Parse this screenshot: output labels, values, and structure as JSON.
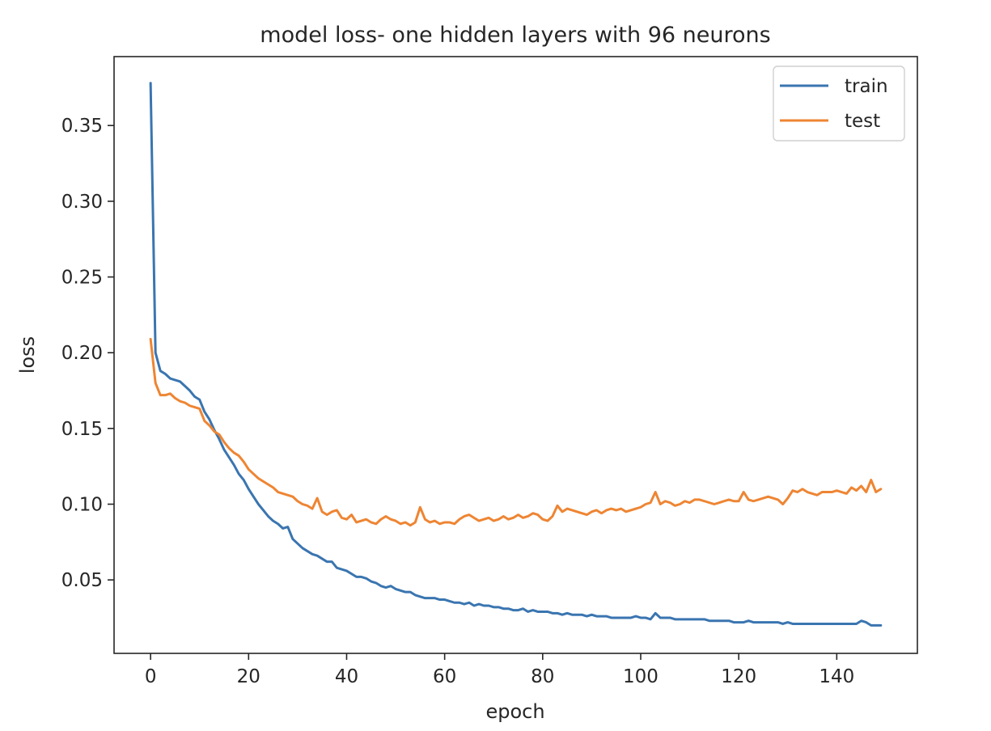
{
  "chart_data": {
    "type": "line",
    "title": "model loss- one hidden layers with 96 neurons",
    "xlabel": "epoch",
    "ylabel": "loss",
    "xlim": [
      -7.45,
      156.45
    ],
    "ylim": [
      0.0015,
      0.3955
    ],
    "x_ticks": [
      0,
      20,
      40,
      60,
      80,
      100,
      120,
      140
    ],
    "y_ticks": [
      0.05,
      0.1,
      0.15,
      0.2,
      0.25,
      0.3,
      0.35
    ],
    "y_tick_labels": [
      "0.05",
      "0.10",
      "0.15",
      "0.20",
      "0.25",
      "0.30",
      "0.35"
    ],
    "grid": false,
    "legend": {
      "position": "top-right"
    },
    "series": [
      {
        "name": "train",
        "color": "#3a75b0",
        "x_start": 0,
        "x_step": 1,
        "values": [
          0.378,
          0.2,
          0.188,
          0.186,
          0.183,
          0.182,
          0.181,
          0.178,
          0.175,
          0.171,
          0.169,
          0.161,
          0.156,
          0.149,
          0.143,
          0.136,
          0.131,
          0.126,
          0.12,
          0.116,
          0.11,
          0.105,
          0.1,
          0.096,
          0.092,
          0.089,
          0.087,
          0.084,
          0.085,
          0.077,
          0.074,
          0.071,
          0.069,
          0.067,
          0.066,
          0.064,
          0.062,
          0.062,
          0.058,
          0.057,
          0.056,
          0.054,
          0.052,
          0.052,
          0.051,
          0.049,
          0.048,
          0.046,
          0.045,
          0.046,
          0.044,
          0.043,
          0.042,
          0.042,
          0.04,
          0.039,
          0.038,
          0.038,
          0.038,
          0.037,
          0.037,
          0.036,
          0.035,
          0.035,
          0.034,
          0.035,
          0.033,
          0.034,
          0.033,
          0.033,
          0.032,
          0.032,
          0.031,
          0.031,
          0.03,
          0.03,
          0.031,
          0.029,
          0.03,
          0.029,
          0.029,
          0.029,
          0.028,
          0.028,
          0.027,
          0.028,
          0.027,
          0.027,
          0.027,
          0.026,
          0.027,
          0.026,
          0.026,
          0.026,
          0.025,
          0.025,
          0.025,
          0.025,
          0.025,
          0.026,
          0.025,
          0.025,
          0.024,
          0.028,
          0.025,
          0.025,
          0.025,
          0.024,
          0.024,
          0.024,
          0.024,
          0.024,
          0.024,
          0.024,
          0.023,
          0.023,
          0.023,
          0.023,
          0.023,
          0.022,
          0.022,
          0.022,
          0.023,
          0.022,
          0.022,
          0.022,
          0.022,
          0.022,
          0.022,
          0.021,
          0.022,
          0.021,
          0.021,
          0.021,
          0.021,
          0.021,
          0.021,
          0.021,
          0.021,
          0.021,
          0.021,
          0.021,
          0.021,
          0.021,
          0.021,
          0.023,
          0.022,
          0.02,
          0.02,
          0.02
        ]
      },
      {
        "name": "test",
        "color": "#ee8533",
        "x_start": 0,
        "x_step": 1,
        "values": [
          0.209,
          0.18,
          0.172,
          0.172,
          0.173,
          0.17,
          0.168,
          0.167,
          0.165,
          0.164,
          0.163,
          0.155,
          0.152,
          0.148,
          0.146,
          0.141,
          0.137,
          0.134,
          0.132,
          0.128,
          0.123,
          0.12,
          0.117,
          0.115,
          0.113,
          0.111,
          0.108,
          0.107,
          0.106,
          0.105,
          0.102,
          0.1,
          0.099,
          0.097,
          0.104,
          0.095,
          0.093,
          0.095,
          0.096,
          0.091,
          0.09,
          0.093,
          0.088,
          0.089,
          0.09,
          0.088,
          0.087,
          0.09,
          0.092,
          0.09,
          0.089,
          0.087,
          0.088,
          0.086,
          0.088,
          0.098,
          0.09,
          0.088,
          0.089,
          0.087,
          0.088,
          0.088,
          0.087,
          0.09,
          0.092,
          0.093,
          0.091,
          0.089,
          0.09,
          0.091,
          0.089,
          0.09,
          0.092,
          0.09,
          0.091,
          0.093,
          0.091,
          0.092,
          0.094,
          0.093,
          0.09,
          0.089,
          0.092,
          0.099,
          0.095,
          0.097,
          0.096,
          0.095,
          0.094,
          0.093,
          0.095,
          0.096,
          0.094,
          0.096,
          0.097,
          0.096,
          0.097,
          0.095,
          0.096,
          0.097,
          0.098,
          0.1,
          0.101,
          0.108,
          0.1,
          0.102,
          0.101,
          0.099,
          0.1,
          0.102,
          0.101,
          0.103,
          0.103,
          0.102,
          0.101,
          0.1,
          0.101,
          0.102,
          0.103,
          0.102,
          0.102,
          0.108,
          0.103,
          0.102,
          0.103,
          0.104,
          0.105,
          0.104,
          0.103,
          0.1,
          0.104,
          0.109,
          0.108,
          0.11,
          0.108,
          0.107,
          0.106,
          0.108,
          0.108,
          0.108,
          0.109,
          0.108,
          0.107,
          0.111,
          0.109,
          0.112,
          0.108,
          0.116,
          0.108,
          0.11
        ]
      }
    ]
  }
}
